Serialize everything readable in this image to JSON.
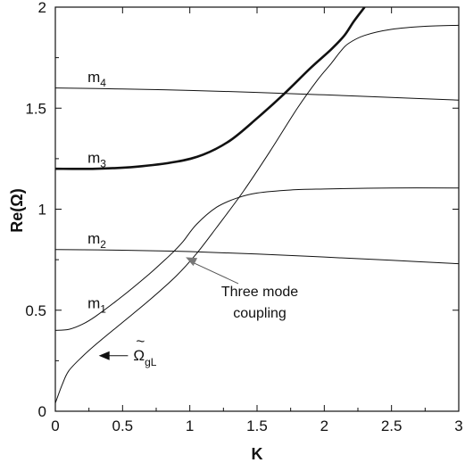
{
  "chart_data": {
    "type": "line",
    "xlabel": "K",
    "ylabel": "Re(Ω)",
    "xlim": [
      0,
      3
    ],
    "ylim": [
      0,
      2
    ],
    "x_ticks": [
      0,
      0.5,
      1,
      1.5,
      2,
      2.5,
      3
    ],
    "x_tick_labels": [
      "0",
      "0.5",
      "1",
      "1.5",
      "2",
      "2.5",
      "3"
    ],
    "y_ticks": [
      0,
      0.5,
      1,
      1.5,
      2
    ],
    "y_tick_labels": [
      "0",
      "0.5",
      "1",
      "1.5",
      "2"
    ],
    "grid": false,
    "series": [
      {
        "key": "m4",
        "name": "m4",
        "points": [
          [
            0,
            1.6
          ],
          [
            0.5,
            1.595
          ],
          [
            1,
            1.588
          ],
          [
            1.5,
            1.578
          ],
          [
            2,
            1.566
          ],
          [
            2.5,
            1.553
          ],
          [
            3,
            1.54
          ]
        ]
      },
      {
        "key": "m2",
        "name": "m2",
        "points": [
          [
            0,
            0.8
          ],
          [
            0.5,
            0.797
          ],
          [
            1,
            0.79
          ],
          [
            1.5,
            0.778
          ],
          [
            2,
            0.763
          ],
          [
            2.5,
            0.747
          ],
          [
            3,
            0.73
          ]
        ]
      },
      {
        "key": "m3",
        "name": "m3",
        "points": [
          [
            0,
            1.2
          ],
          [
            0.3,
            1.2
          ],
          [
            0.6,
            1.21
          ],
          [
            0.9,
            1.235
          ],
          [
            1.1,
            1.27
          ],
          [
            1.3,
            1.34
          ],
          [
            1.5,
            1.45
          ],
          [
            1.7,
            1.57
          ],
          [
            1.9,
            1.7
          ],
          [
            2.05,
            1.79
          ],
          [
            2.15,
            1.86
          ],
          [
            2.22,
            1.93
          ],
          [
            2.3,
            2.0
          ]
        ]
      },
      {
        "key": "m1",
        "name": "m1",
        "points": [
          [
            0,
            0.4
          ],
          [
            0.1,
            0.405
          ],
          [
            0.2,
            0.43
          ],
          [
            0.3,
            0.47
          ],
          [
            0.5,
            0.57
          ],
          [
            0.7,
            0.68
          ],
          [
            0.8,
            0.74
          ],
          [
            0.88,
            0.79
          ],
          [
            0.95,
            0.84
          ],
          [
            1.05,
            0.925
          ],
          [
            1.2,
            1.01
          ],
          [
            1.35,
            1.055
          ],
          [
            1.5,
            1.08
          ],
          [
            1.75,
            1.095
          ],
          [
            2,
            1.1
          ],
          [
            2.5,
            1.105
          ],
          [
            3,
            1.105
          ]
        ]
      },
      {
        "key": "omega_gL",
        "name": "",
        "points": [
          [
            0,
            0.04
          ],
          [
            0.05,
            0.13
          ],
          [
            0.1,
            0.2
          ],
          [
            0.2,
            0.27
          ],
          [
            0.3,
            0.33
          ],
          [
            0.5,
            0.44
          ],
          [
            0.7,
            0.55
          ],
          [
            0.9,
            0.67
          ],
          [
            1.05,
            0.78
          ],
          [
            1.2,
            0.91
          ],
          [
            1.4,
            1.09
          ],
          [
            1.6,
            1.29
          ],
          [
            1.8,
            1.5
          ],
          [
            1.95,
            1.64
          ],
          [
            2.05,
            1.72
          ],
          [
            2.12,
            1.78
          ],
          [
            2.18,
            1.82
          ],
          [
            2.3,
            1.86
          ],
          [
            2.5,
            1.89
          ],
          [
            2.75,
            1.905
          ],
          [
            3,
            1.91
          ]
        ]
      }
    ],
    "annotations": {
      "m4": {
        "base": "m",
        "sub": "4",
        "x": 0.12,
        "y": 1.63
      },
      "m3": {
        "base": "m",
        "sub": "3",
        "x": 0.12,
        "y": 1.23
      },
      "m2": {
        "base": "m",
        "sub": "2",
        "x": 0.12,
        "y": 0.83
      },
      "m1": {
        "base": "m",
        "sub": "1",
        "x": 0.12,
        "y": 0.51
      },
      "three_mode": {
        "line1": "Three mode",
        "line2": "coupling",
        "x": 1.52,
        "y": 0.57,
        "target_x": 0.93,
        "target_y": 0.78
      },
      "omega": {
        "base": "Ω",
        "accent": "~",
        "sub": "gL",
        "x": 0.58,
        "y": 0.26,
        "arrow_to_x": 0.27,
        "arrow_y": 0.275
      }
    }
  }
}
